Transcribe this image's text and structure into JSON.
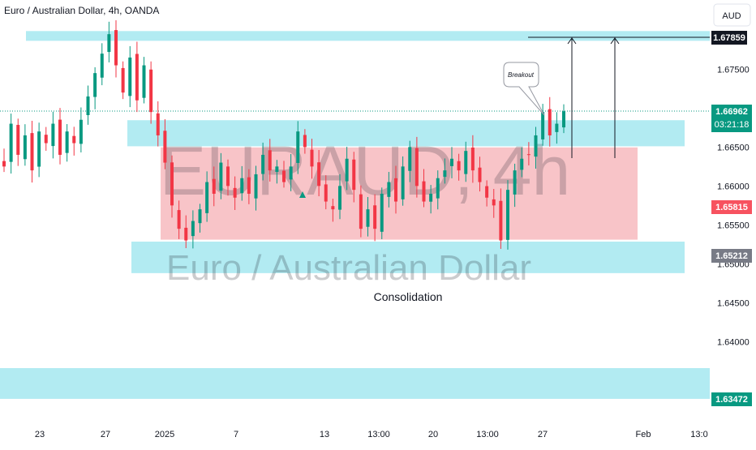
{
  "header": {
    "title": "Euro / Australian Dollar, 4h, OANDA",
    "currency_button": "AUD"
  },
  "watermark": {
    "main": "EURAUD, 4h",
    "sub": "Euro / Australian Dollar"
  },
  "annotations": {
    "breakout": "Breakout",
    "consolidation": "Consolidation"
  },
  "price_tags": {
    "target": "1.67859",
    "last": "1.66962",
    "countdown": "03:21:18",
    "high_marker": "1.65815",
    "low_marker": "1.65212",
    "bottom_zone": "1.63472"
  },
  "colors": {
    "up": "#089981",
    "down": "#f23645",
    "zone_blue": "#b2ebf2",
    "zone_red": "#f8c4c8",
    "tag_black": "#131722",
    "tag_green": "#089981",
    "tag_red": "#f7525f",
    "tag_gray": "#787b86"
  },
  "chart_data": {
    "type": "candlestick",
    "title": "Euro / Australian Dollar, 4h, OANDA",
    "symbol": "EURAUD",
    "timeframe": "4h",
    "y_ticks": [
      "1.67500",
      "1.67000",
      "1.66500",
      "1.66000",
      "1.65500",
      "1.65000",
      "1.64500",
      "1.64000"
    ],
    "y_tick_values": [
      1.675,
      1.67,
      1.665,
      1.66,
      1.655,
      1.65,
      1.645,
      1.64
    ],
    "ylim": [
      1.632,
      1.681
    ],
    "x_ticks": [
      "23",
      "27",
      "2025",
      "7",
      "13",
      "13:00",
      "20",
      "13:00",
      "27",
      "Feb",
      "13:0"
    ],
    "zones": [
      {
        "name": "resistance",
        "from": 1.67865,
        "to": 1.6799,
        "color": "blue"
      },
      {
        "name": "breakout-retest",
        "from": 1.6651,
        "to": 1.66845,
        "color": "blue"
      },
      {
        "name": "consolidation-range",
        "from": 1.6531,
        "to": 1.66495,
        "color": "red"
      },
      {
        "name": "support",
        "from": 1.6488,
        "to": 1.65285,
        "color": "blue"
      },
      {
        "name": "lower-support",
        "from": 1.63265,
        "to": 1.6366,
        "color": "blue"
      }
    ],
    "target_level": 1.67859,
    "last_price": 1.66962,
    "closes": [
      1.6625,
      1.668,
      1.664,
      1.6665,
      1.662,
      1.667,
      1.6655,
      1.668,
      1.664,
      1.667,
      1.6655,
      1.6685,
      1.6715,
      1.6745,
      1.677,
      1.6795,
      1.6755,
      1.672,
      1.6765,
      1.671,
      1.6755,
      1.6695,
      1.6665,
      1.663,
      1.6575,
      1.6545,
      1.653,
      1.6555,
      1.657,
      1.6605,
      1.659,
      1.663,
      1.66,
      1.6585,
      1.661,
      1.659,
      1.6615,
      1.664,
      1.662,
      1.6625,
      1.6605,
      1.6625,
      1.667,
      1.665,
      1.6625,
      1.66,
      1.658,
      1.657,
      1.66,
      1.6635,
      1.6595,
      1.6545,
      1.657,
      1.6545,
      1.659,
      1.6605,
      1.658,
      1.6625,
      1.665,
      1.66,
      1.658,
      1.659,
      1.661,
      1.662,
      1.6635,
      1.662,
      1.6645,
      1.662,
      1.6605,
      1.6585,
      1.6575,
      1.653,
      1.6595,
      1.662,
      1.6635,
      1.664,
      1.6665,
      1.6695,
      1.6665,
      1.668,
      1.6696
    ]
  }
}
